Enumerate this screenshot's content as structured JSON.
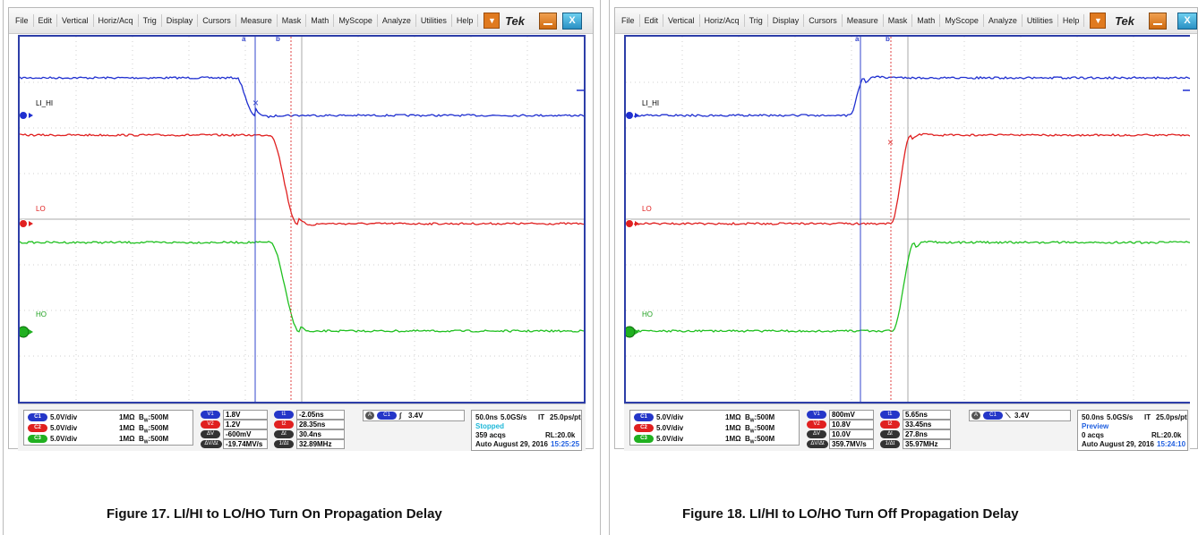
{
  "panels": [
    {
      "menu": [
        "File",
        "Edit",
        "Vertical",
        "Horiz/Acq",
        "Trig",
        "Display",
        "Cursors",
        "Measure",
        "Mask",
        "Math",
        "MyScope",
        "Analyze",
        "Utilities",
        "Help"
      ],
      "brand": "Tek",
      "close_label": "X",
      "cursor_a": "a",
      "cursor_b": "b",
      "channel_labels": {
        "ch1": "LI_HI",
        "ch2": "LO",
        "ch3": "HO"
      },
      "channels": [
        {
          "id": "C1",
          "scale": "5.0V/div",
          "coupling": "1MΩ",
          "bw": "500M"
        },
        {
          "id": "C2",
          "scale": "5.0V/div",
          "coupling": "1MΩ",
          "bw": "500M"
        },
        {
          "id": "C3",
          "scale": "5.0V/div",
          "coupling": "1MΩ",
          "bw": "500M"
        }
      ],
      "cursors": {
        "v1": "1.8V",
        "v2": "1.2V",
        "dv": "-600mV",
        "dvdt": "-19.74MV/s",
        "t1": "-2.05ns",
        "t2": "28.35ns",
        "dt": "30.4ns",
        "inv_dt": "32.89MHz"
      },
      "trigger": {
        "source": "C1",
        "slope": "rising",
        "level": "3.4V"
      },
      "acq": {
        "timebase": "50.0ns",
        "rate": "5.0GS/s",
        "mode": "IT",
        "resolution": "25.0ps/pt",
        "status": "Stopped",
        "acqs": "359 acqs",
        "rl": "RL:20.0k",
        "trig_mode": "Auto",
        "date": "August 29, 2016",
        "time": "15:25:25"
      },
      "caption": "Figure 17. LI/HI to LO/HO Turn On Propagation Delay"
    },
    {
      "menu": [
        "File",
        "Edit",
        "Vertical",
        "Horiz/Acq",
        "Trig",
        "Display",
        "Cursors",
        "Measure",
        "Mask",
        "Math",
        "MyScope",
        "Analyze",
        "Utilities",
        "Help"
      ],
      "brand": "Tek",
      "close_label": "X",
      "cursor_a": "a",
      "cursor_b": "b",
      "channel_labels": {
        "ch1": "LI_HI",
        "ch2": "LO",
        "ch3": "HO"
      },
      "channels": [
        {
          "id": "C1",
          "scale": "5.0V/div",
          "coupling": "1MΩ",
          "bw": "500M"
        },
        {
          "id": "C2",
          "scale": "5.0V/div",
          "coupling": "1MΩ",
          "bw": "500M"
        },
        {
          "id": "C3",
          "scale": "5.0V/div",
          "coupling": "1MΩ",
          "bw": "500M"
        }
      ],
      "cursors": {
        "v1": "800mV",
        "v2": "10.8V",
        "dv": "10.0V",
        "dvdt": "359.7MV/s",
        "t1": "5.65ns",
        "t2": "33.45ns",
        "dt": "27.8ns",
        "inv_dt": "35.97MHz"
      },
      "trigger": {
        "source": "C1",
        "slope": "falling",
        "level": "3.4V"
      },
      "acq": {
        "timebase": "50.0ns",
        "rate": "5.0GS/s",
        "mode": "IT",
        "resolution": "25.0ps/pt",
        "status": "Preview",
        "acqs": "0 acqs",
        "rl": "RL:20.0k",
        "trig_mode": "Auto",
        "date": "August 29, 2016",
        "time": "15:24:10"
      },
      "caption": "Figure 18. LI/HI to LO/HO Turn Off Propagation Delay"
    }
  ],
  "labels": {
    "bw_prefix": "B",
    "bw_sub": "W",
    "pill_v1": "V1",
    "pill_v2": "V2",
    "pill_dv": "ΔV",
    "pill_dvdt": "ΔV/Δt",
    "pill_t1": "t1",
    "pill_t2": "t2",
    "pill_dt": "Δt",
    "pill_invdt": "1/Δt",
    "trig_a": "A"
  },
  "colors": {
    "ch1": "#1f2fd0",
    "ch2": "#e02020",
    "ch3": "#20c020",
    "cursor_a": "#3344cc",
    "cursor_b": "#e04040",
    "status_stopped": "#1fb8d8",
    "status_preview": "#1f5fe0",
    "time": "#1f5fe0"
  }
}
